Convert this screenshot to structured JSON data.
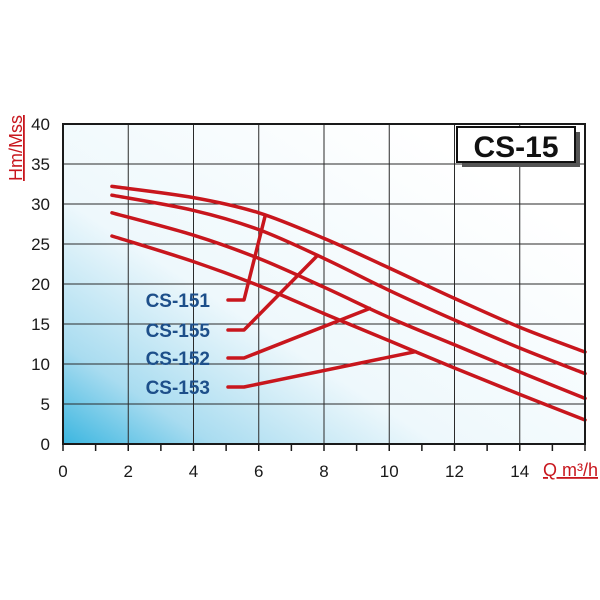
{
  "chart_data": {
    "type": "line",
    "title": "CS-15",
    "xlabel": "Q m³/h",
    "ylabel": "Hm/Mss",
    "xlim": [
      0,
      16
    ],
    "ylim": [
      0,
      40
    ],
    "x_ticks": [
      0,
      2,
      4,
      6,
      8,
      10,
      12,
      14
    ],
    "y_ticks": [
      0,
      5,
      10,
      15,
      20,
      25,
      30,
      35,
      40
    ],
    "grid": true,
    "colors": {
      "curve": "#c8161d",
      "label": "#1d4f8a",
      "axis_title": "#c8161d",
      "background_gradient": [
        "#3bb6e0",
        "#ffffff"
      ]
    },
    "series": [
      {
        "name": "CS-151",
        "x": [
          1.5,
          4,
          6,
          8,
          10,
          12,
          14,
          16
        ],
        "y": [
          32.2,
          30.8,
          28.9,
          25.7,
          22,
          18.2,
          14.6,
          11.5
        ]
      },
      {
        "name": "CS-155",
        "x": [
          1.5,
          4,
          6,
          8,
          10,
          12,
          14,
          16
        ],
        "y": [
          31.1,
          29.2,
          26.8,
          23.2,
          19.2,
          15.5,
          12,
          8.8
        ]
      },
      {
        "name": "CS-152",
        "x": [
          1.5,
          4,
          6,
          8,
          10,
          12,
          14,
          16
        ],
        "y": [
          28.9,
          26.1,
          23.2,
          19.6,
          15.8,
          12.4,
          9,
          5.7
        ]
      },
      {
        "name": "CS-153",
        "x": [
          1.5,
          4,
          6,
          8,
          10,
          12,
          14,
          16
        ],
        "y": [
          26,
          22.8,
          19.8,
          16.3,
          12.9,
          9.5,
          6.2,
          3
        ]
      }
    ],
    "label_pointers": [
      {
        "series": "CS-151",
        "at_x": 6.2
      },
      {
        "series": "CS-155",
        "at_x": 7.8
      },
      {
        "series": "CS-152",
        "at_x": 9.4
      },
      {
        "series": "CS-153",
        "at_x": 10.8
      }
    ]
  }
}
